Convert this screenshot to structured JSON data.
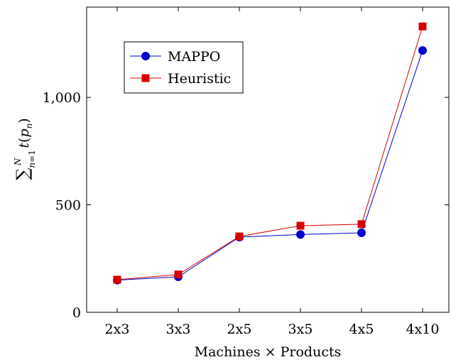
{
  "chart_data": {
    "type": "line",
    "categories": [
      "2x3",
      "3x3",
      "2x5",
      "3x5",
      "4x5",
      "4x10"
    ],
    "series": [
      {
        "name": "MAPPO",
        "values": [
          150,
          165,
          350,
          362,
          370,
          1218
        ],
        "color": "#0000cc",
        "marker": "circle"
      },
      {
        "name": "Heuristic",
        "values": [
          152,
          176,
          353,
          403,
          410,
          1330
        ],
        "color": "#d40000",
        "marker": "square"
      }
    ],
    "xlabel": "Machines × Products",
    "ylabel": "∑_{n=1}^{N} t(p_n)",
    "ylim": [
      0,
      1420
    ],
    "yticks": [
      0,
      500,
      1000
    ],
    "ytick_labels": [
      "0",
      "500",
      "1,000"
    ],
    "grid": false,
    "legend_position": "top-left"
  }
}
